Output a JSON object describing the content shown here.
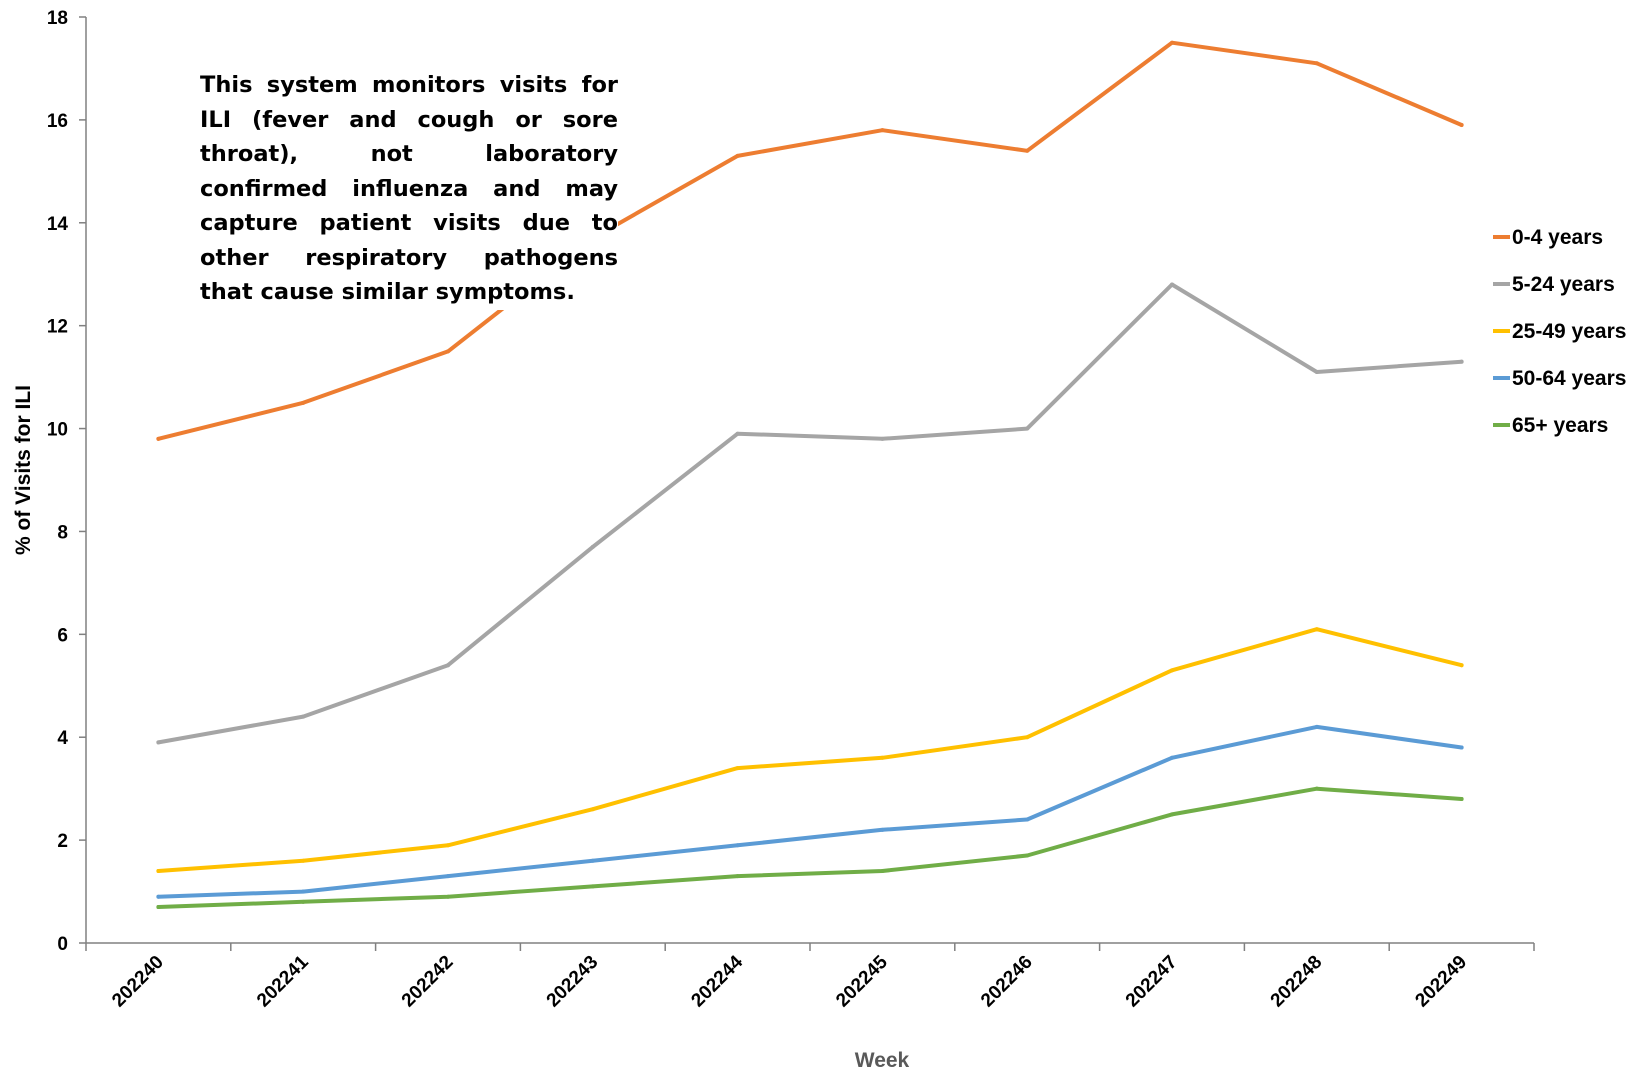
{
  "chart_data": {
    "type": "line",
    "title": "",
    "xlabel": "Week",
    "ylabel": "% of Visits for ILI",
    "ylim": [
      0,
      18
    ],
    "yticks": [
      0,
      2,
      4,
      6,
      8,
      10,
      12,
      14,
      16,
      18
    ],
    "grid": false,
    "legend_position": "right",
    "x": [
      "202240",
      "202241",
      "202242",
      "202243",
      "202244",
      "202245",
      "202246",
      "202247",
      "202248",
      "202249"
    ],
    "series": [
      {
        "name": "0-4 years",
        "color": "#ED7D31",
        "values": [
          9.8,
          10.5,
          11.5,
          13.7,
          15.3,
          15.8,
          15.4,
          17.5,
          17.1,
          15.9
        ]
      },
      {
        "name": "5-24 years",
        "color": "#A5A5A5",
        "values": [
          3.9,
          4.4,
          5.4,
          7.7,
          9.9,
          9.8,
          10.0,
          12.8,
          11.1,
          11.3
        ]
      },
      {
        "name": "25-49 years",
        "color": "#FFC000",
        "values": [
          1.4,
          1.6,
          1.9,
          2.6,
          3.4,
          3.6,
          4.0,
          5.3,
          6.1,
          5.4
        ]
      },
      {
        "name": "50-64 years",
        "color": "#5B9BD5",
        "values": [
          0.9,
          1.0,
          1.3,
          1.6,
          1.9,
          2.2,
          2.4,
          3.6,
          4.2,
          3.8
        ]
      },
      {
        "name": "65+ years",
        "color": "#70AD47",
        "values": [
          0.7,
          0.8,
          0.9,
          1.1,
          1.3,
          1.4,
          1.7,
          2.5,
          3.0,
          2.8
        ]
      }
    ],
    "annotation": "This system monitors visits for ILI (fever and cough or sore throat), not laboratory confirmed influenza and may capture patient visits due to other respiratory pathogens that cause similar symptoms."
  }
}
